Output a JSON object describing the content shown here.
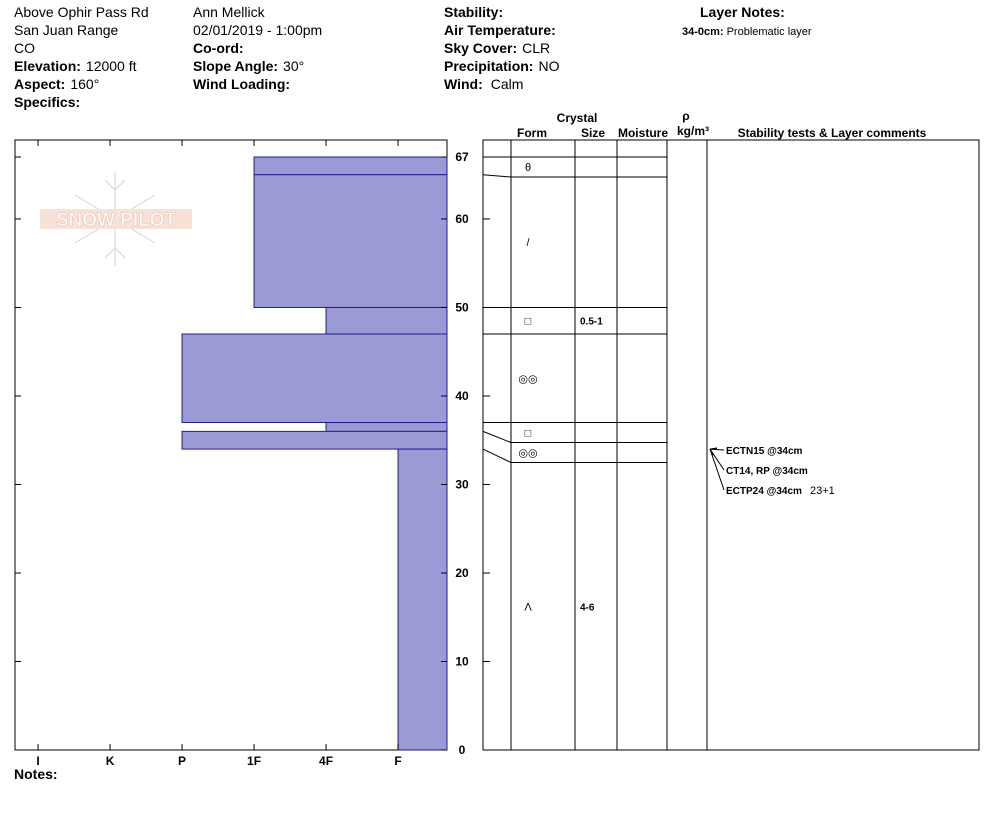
{
  "header": {
    "site": "Above Ophir Pass Rd",
    "range": "San Juan Range",
    "state": "CO",
    "elevation_label": "Elevation:",
    "elevation": "12000 ft",
    "aspect_label": "Aspect:",
    "aspect": "160°",
    "specifics_label": "Specifics:",
    "observer": "Ann Mellick",
    "datetime": "02/01/2019 - 1:00pm",
    "coord_label": "Co-ord:",
    "slope_label": "Slope Angle:",
    "slope": "30°",
    "wind_loading_label": "Wind Loading:",
    "stability_label": "Stability:",
    "air_temp_label": "Air Temperature:",
    "sky_label": "Sky Cover:",
    "sky": "CLR",
    "precip_label": "Precipitation:",
    "precip": "NO",
    "wind_label": "Wind:",
    "wind": "Calm",
    "layer_notes_title": "Layer Notes:",
    "layer_note_depth": "34-0cm:",
    "layer_note": "Problematic layer"
  },
  "logo": "SNOW PILOT",
  "notes_label": "Notes:",
  "chart_data": {
    "type": "profile",
    "fill": "#9b9ad6",
    "stroke": "#1e1e8c",
    "ylim": [
      0,
      67
    ],
    "yticks": [
      0,
      10,
      20,
      30,
      40,
      50,
      60,
      67
    ],
    "xlim": [
      6.32,
      0.32
    ],
    "xticks": [
      {
        "value": 6,
        "label": "I"
      },
      {
        "value": 5,
        "label": "K"
      },
      {
        "value": 4,
        "label": "P"
      },
      {
        "value": 3,
        "label": "1F"
      },
      {
        "value": 2,
        "label": "4F"
      },
      {
        "value": 1,
        "label": "F"
      }
    ],
    "table_headers": {
      "crystal": "Crystal",
      "form": "Form",
      "size": "Size",
      "moisture": "Moisture",
      "rho": "ρ",
      "density_unit": "kg/m³",
      "comments": "Stability tests & Layer comments"
    },
    "layers": [
      {
        "top": 67,
        "bottom": 65,
        "hardness": 3,
        "form": "θ"
      },
      {
        "top": 65,
        "bottom": 50,
        "hardness": 3,
        "form": "/"
      },
      {
        "top": 50,
        "bottom": 47,
        "hardness": 2,
        "form": "□",
        "size": "0.5-1"
      },
      {
        "top": 47,
        "bottom": 37,
        "hardness": 4,
        "form": "◎◎"
      },
      {
        "top": 37,
        "bottom": 36,
        "hardness": 2,
        "form": "□"
      },
      {
        "top": 36,
        "bottom": 34,
        "hardness": 4,
        "form": "◎◎"
      },
      {
        "top": 34,
        "bottom": 0,
        "hardness": 1,
        "form": "Λ",
        "size": "4-6"
      }
    ],
    "tests": [
      {
        "result": "ECTN15 @34cm",
        "depth": 34
      },
      {
        "result": "CT14, RP @34cm",
        "depth": 34
      },
      {
        "result": "ECTP24 @34cm",
        "depth": 34,
        "comment": "23+1"
      }
    ]
  }
}
